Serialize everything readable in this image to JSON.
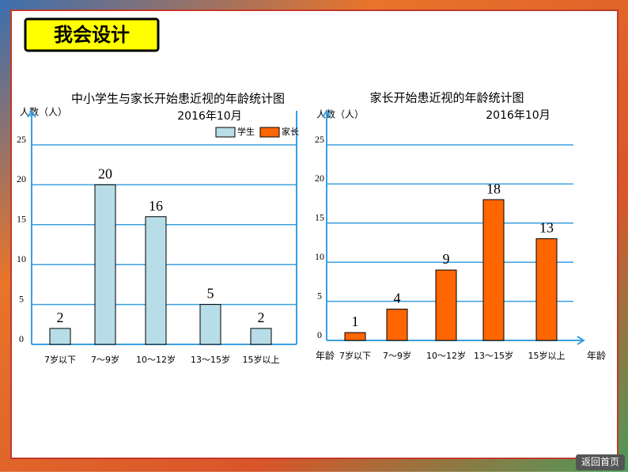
{
  "header": "我会设计",
  "nav_button": "返回首页",
  "chart_data": [
    {
      "type": "bar",
      "title": "中小学生与家长开始患近视的年龄统计图",
      "subtitle": "2016年10月",
      "y_label": "人数（人）",
      "categories": [
        "7岁以下",
        "7～9岁",
        "10～12岁",
        "13～15岁",
        "15岁以上"
      ],
      "series": [
        {
          "name": "学生",
          "color": "#b7dde8",
          "values": [
            2,
            20,
            16,
            5,
            2
          ]
        },
        {
          "name": "家长",
          "color": "#ff6600",
          "values": [
            null,
            null,
            null,
            null,
            null
          ]
        }
      ],
      "ylim": [
        0,
        25
      ],
      "yticks": [
        0,
        5,
        10,
        15,
        20,
        25
      ],
      "grid": true,
      "legend": "top-right"
    },
    {
      "type": "bar",
      "title": "家长开始患近视的年龄统计图",
      "subtitle": "2016年10月",
      "y_label": "人数（人）",
      "x_label": "年龄",
      "corner_label": "年龄",
      "categories": [
        "7岁以下",
        "7～9岁",
        "10～12岁",
        "13～15岁",
        "15岁以上"
      ],
      "series": [
        {
          "name": "家长",
          "color": "#ff6600",
          "values": [
            1,
            4,
            9,
            18,
            13
          ]
        }
      ],
      "ylim": [
        0,
        25
      ],
      "yticks": [
        0,
        5,
        10,
        15,
        20,
        25
      ],
      "grid": true
    }
  ]
}
